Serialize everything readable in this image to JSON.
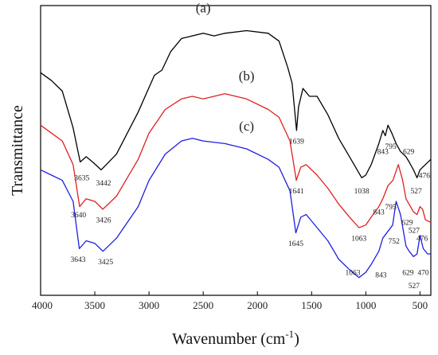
{
  "chart_data": {
    "type": "line",
    "xlabel": "Wavenumber (cm",
    "xlabel_sup": "-1",
    "xlabel_close": ")",
    "ylabel": "Transmittance",
    "xlim": [
      4000,
      400
    ],
    "ylim": [
      0,
      100
    ],
    "x_reversed": true,
    "xticks": [
      4000,
      3500,
      3000,
      2500,
      2000,
      1500,
      1000,
      500
    ],
    "grid": false,
    "series": [
      {
        "name": "(a)",
        "color": "#000000",
        "points": [
          [
            4000,
            79
          ],
          [
            3900,
            76
          ],
          [
            3800,
            72
          ],
          [
            3700,
            58
          ],
          [
            3635,
            45
          ],
          [
            3580,
            47
          ],
          [
            3520,
            45
          ],
          [
            3442,
            42
          ],
          [
            3300,
            48
          ],
          [
            3100,
            64
          ],
          [
            2950,
            78
          ],
          [
            2880,
            80
          ],
          [
            2800,
            87
          ],
          [
            2700,
            92
          ],
          [
            2500,
            94
          ],
          [
            2400,
            93
          ],
          [
            2300,
            94
          ],
          [
            2100,
            95
          ],
          [
            1900,
            94
          ],
          [
            1800,
            91
          ],
          [
            1720,
            81
          ],
          [
            1680,
            75
          ],
          [
            1639,
            57
          ],
          [
            1620,
            66
          ],
          [
            1580,
            73
          ],
          [
            1520,
            70
          ],
          [
            1450,
            70
          ],
          [
            1350,
            63
          ],
          [
            1250,
            54
          ],
          [
            1150,
            47
          ],
          [
            1038,
            39
          ],
          [
            1000,
            40
          ],
          [
            950,
            44
          ],
          [
            880,
            52
          ],
          [
            843,
            57
          ],
          [
            820,
            55
          ],
          [
            795,
            59
          ],
          [
            760,
            56
          ],
          [
            720,
            52
          ],
          [
            680,
            49
          ],
          [
            629,
            47
          ],
          [
            600,
            45
          ],
          [
            560,
            42
          ],
          [
            527,
            39
          ],
          [
            500,
            42
          ],
          [
            476,
            43
          ],
          [
            450,
            44
          ],
          [
            400,
            46
          ]
        ]
      },
      {
        "name": "(b)",
        "color": "#e02020",
        "points": [
          [
            4000,
            59
          ],
          [
            3900,
            56
          ],
          [
            3800,
            53
          ],
          [
            3700,
            44
          ],
          [
            3640,
            28
          ],
          [
            3580,
            31
          ],
          [
            3500,
            30
          ],
          [
            3426,
            27
          ],
          [
            3300,
            32
          ],
          [
            3100,
            46
          ],
          [
            3000,
            56
          ],
          [
            2850,
            65
          ],
          [
            2700,
            69
          ],
          [
            2600,
            70
          ],
          [
            2500,
            69
          ],
          [
            2300,
            71
          ],
          [
            2100,
            69
          ],
          [
            1900,
            65
          ],
          [
            1800,
            62
          ],
          [
            1700,
            53
          ],
          [
            1641,
            38
          ],
          [
            1600,
            43
          ],
          [
            1550,
            44
          ],
          [
            1450,
            40
          ],
          [
            1350,
            35
          ],
          [
            1250,
            29
          ],
          [
            1150,
            24
          ],
          [
            1063,
            20
          ],
          [
            1000,
            21
          ],
          [
            950,
            24
          ],
          [
            880,
            28
          ],
          [
            843,
            31
          ],
          [
            795,
            36
          ],
          [
            750,
            38
          ],
          [
            700,
            44
          ],
          [
            660,
            38
          ],
          [
            629,
            31
          ],
          [
            560,
            26
          ],
          [
            527,
            25
          ],
          [
            500,
            28
          ],
          [
            476,
            27
          ],
          [
            450,
            23
          ],
          [
            400,
            22
          ]
        ]
      },
      {
        "name": "(c)",
        "color": "#1f1fe0",
        "points": [
          [
            4000,
            42
          ],
          [
            3900,
            40
          ],
          [
            3800,
            38
          ],
          [
            3700,
            30
          ],
          [
            3643,
            12
          ],
          [
            3580,
            15
          ],
          [
            3500,
            14
          ],
          [
            3425,
            11
          ],
          [
            3300,
            16
          ],
          [
            3100,
            28
          ],
          [
            3000,
            38
          ],
          [
            2850,
            48
          ],
          [
            2700,
            53
          ],
          [
            2600,
            54
          ],
          [
            2500,
            53
          ],
          [
            2300,
            52
          ],
          [
            2100,
            50
          ],
          [
            1900,
            46
          ],
          [
            1800,
            43
          ],
          [
            1700,
            34
          ],
          [
            1645,
            18
          ],
          [
            1600,
            24
          ],
          [
            1550,
            25
          ],
          [
            1450,
            20
          ],
          [
            1350,
            15
          ],
          [
            1250,
            8
          ],
          [
            1150,
            4
          ],
          [
            1063,
            1
          ],
          [
            1000,
            3
          ],
          [
            950,
            6
          ],
          [
            880,
            11
          ],
          [
            843,
            16
          ],
          [
            752,
            21
          ],
          [
            720,
            30
          ],
          [
            680,
            25
          ],
          [
            629,
            13
          ],
          [
            600,
            11
          ],
          [
            560,
            9
          ],
          [
            527,
            10
          ],
          [
            500,
            17
          ],
          [
            470,
            12
          ],
          [
            430,
            10
          ],
          [
            400,
            10
          ]
        ]
      }
    ],
    "curve_labels": [
      {
        "text": "(a)",
        "x": 2500,
        "y": 102
      },
      {
        "text": "(b)",
        "x": 2100,
        "y": 76
      },
      {
        "text": "(c)",
        "x": 2100,
        "y": 57
      }
    ],
    "annotations": [
      {
        "text": "1639",
        "x": 1639,
        "y": 52
      },
      {
        "text": "3635",
        "x": 3620,
        "y": 38
      },
      {
        "text": "3442",
        "x": 3420,
        "y": 36
      },
      {
        "text": "1038",
        "x": 1038,
        "y": 33
      },
      {
        "text": "843",
        "x": 843,
        "y": 48
      },
      {
        "text": "795",
        "x": 770,
        "y": 50
      },
      {
        "text": "629",
        "x": 605,
        "y": 48
      },
      {
        "text": "527",
        "x": 535,
        "y": 33
      },
      {
        "text": "476",
        "x": 460,
        "y": 39
      },
      {
        "text": "1641",
        "x": 1641,
        "y": 33
      },
      {
        "text": "3640",
        "x": 3650,
        "y": 24
      },
      {
        "text": "3426",
        "x": 3420,
        "y": 22
      },
      {
        "text": "1063",
        "x": 1063,
        "y": 15
      },
      {
        "text": "843",
        "x": 880,
        "y": 25
      },
      {
        "text": "795",
        "x": 770,
        "y": 27
      },
      {
        "text": "629",
        "x": 618,
        "y": 21
      },
      {
        "text": "527",
        "x": 555,
        "y": 18
      },
      {
        "text": "476",
        "x": 480,
        "y": 15
      },
      {
        "text": "3643",
        "x": 3655,
        "y": 7
      },
      {
        "text": "3425",
        "x": 3400,
        "y": 6
      },
      {
        "text": "1645",
        "x": 1645,
        "y": 13
      },
      {
        "text": "1063",
        "x": 1120,
        "y": 2
      },
      {
        "text": "843",
        "x": 860,
        "y": 1
      },
      {
        "text": "752",
        "x": 740,
        "y": 14
      },
      {
        "text": "629",
        "x": 610,
        "y": 2
      },
      {
        "text": "527",
        "x": 555,
        "y": -3
      },
      {
        "text": "470",
        "x": 470,
        "y": 2
      }
    ]
  }
}
